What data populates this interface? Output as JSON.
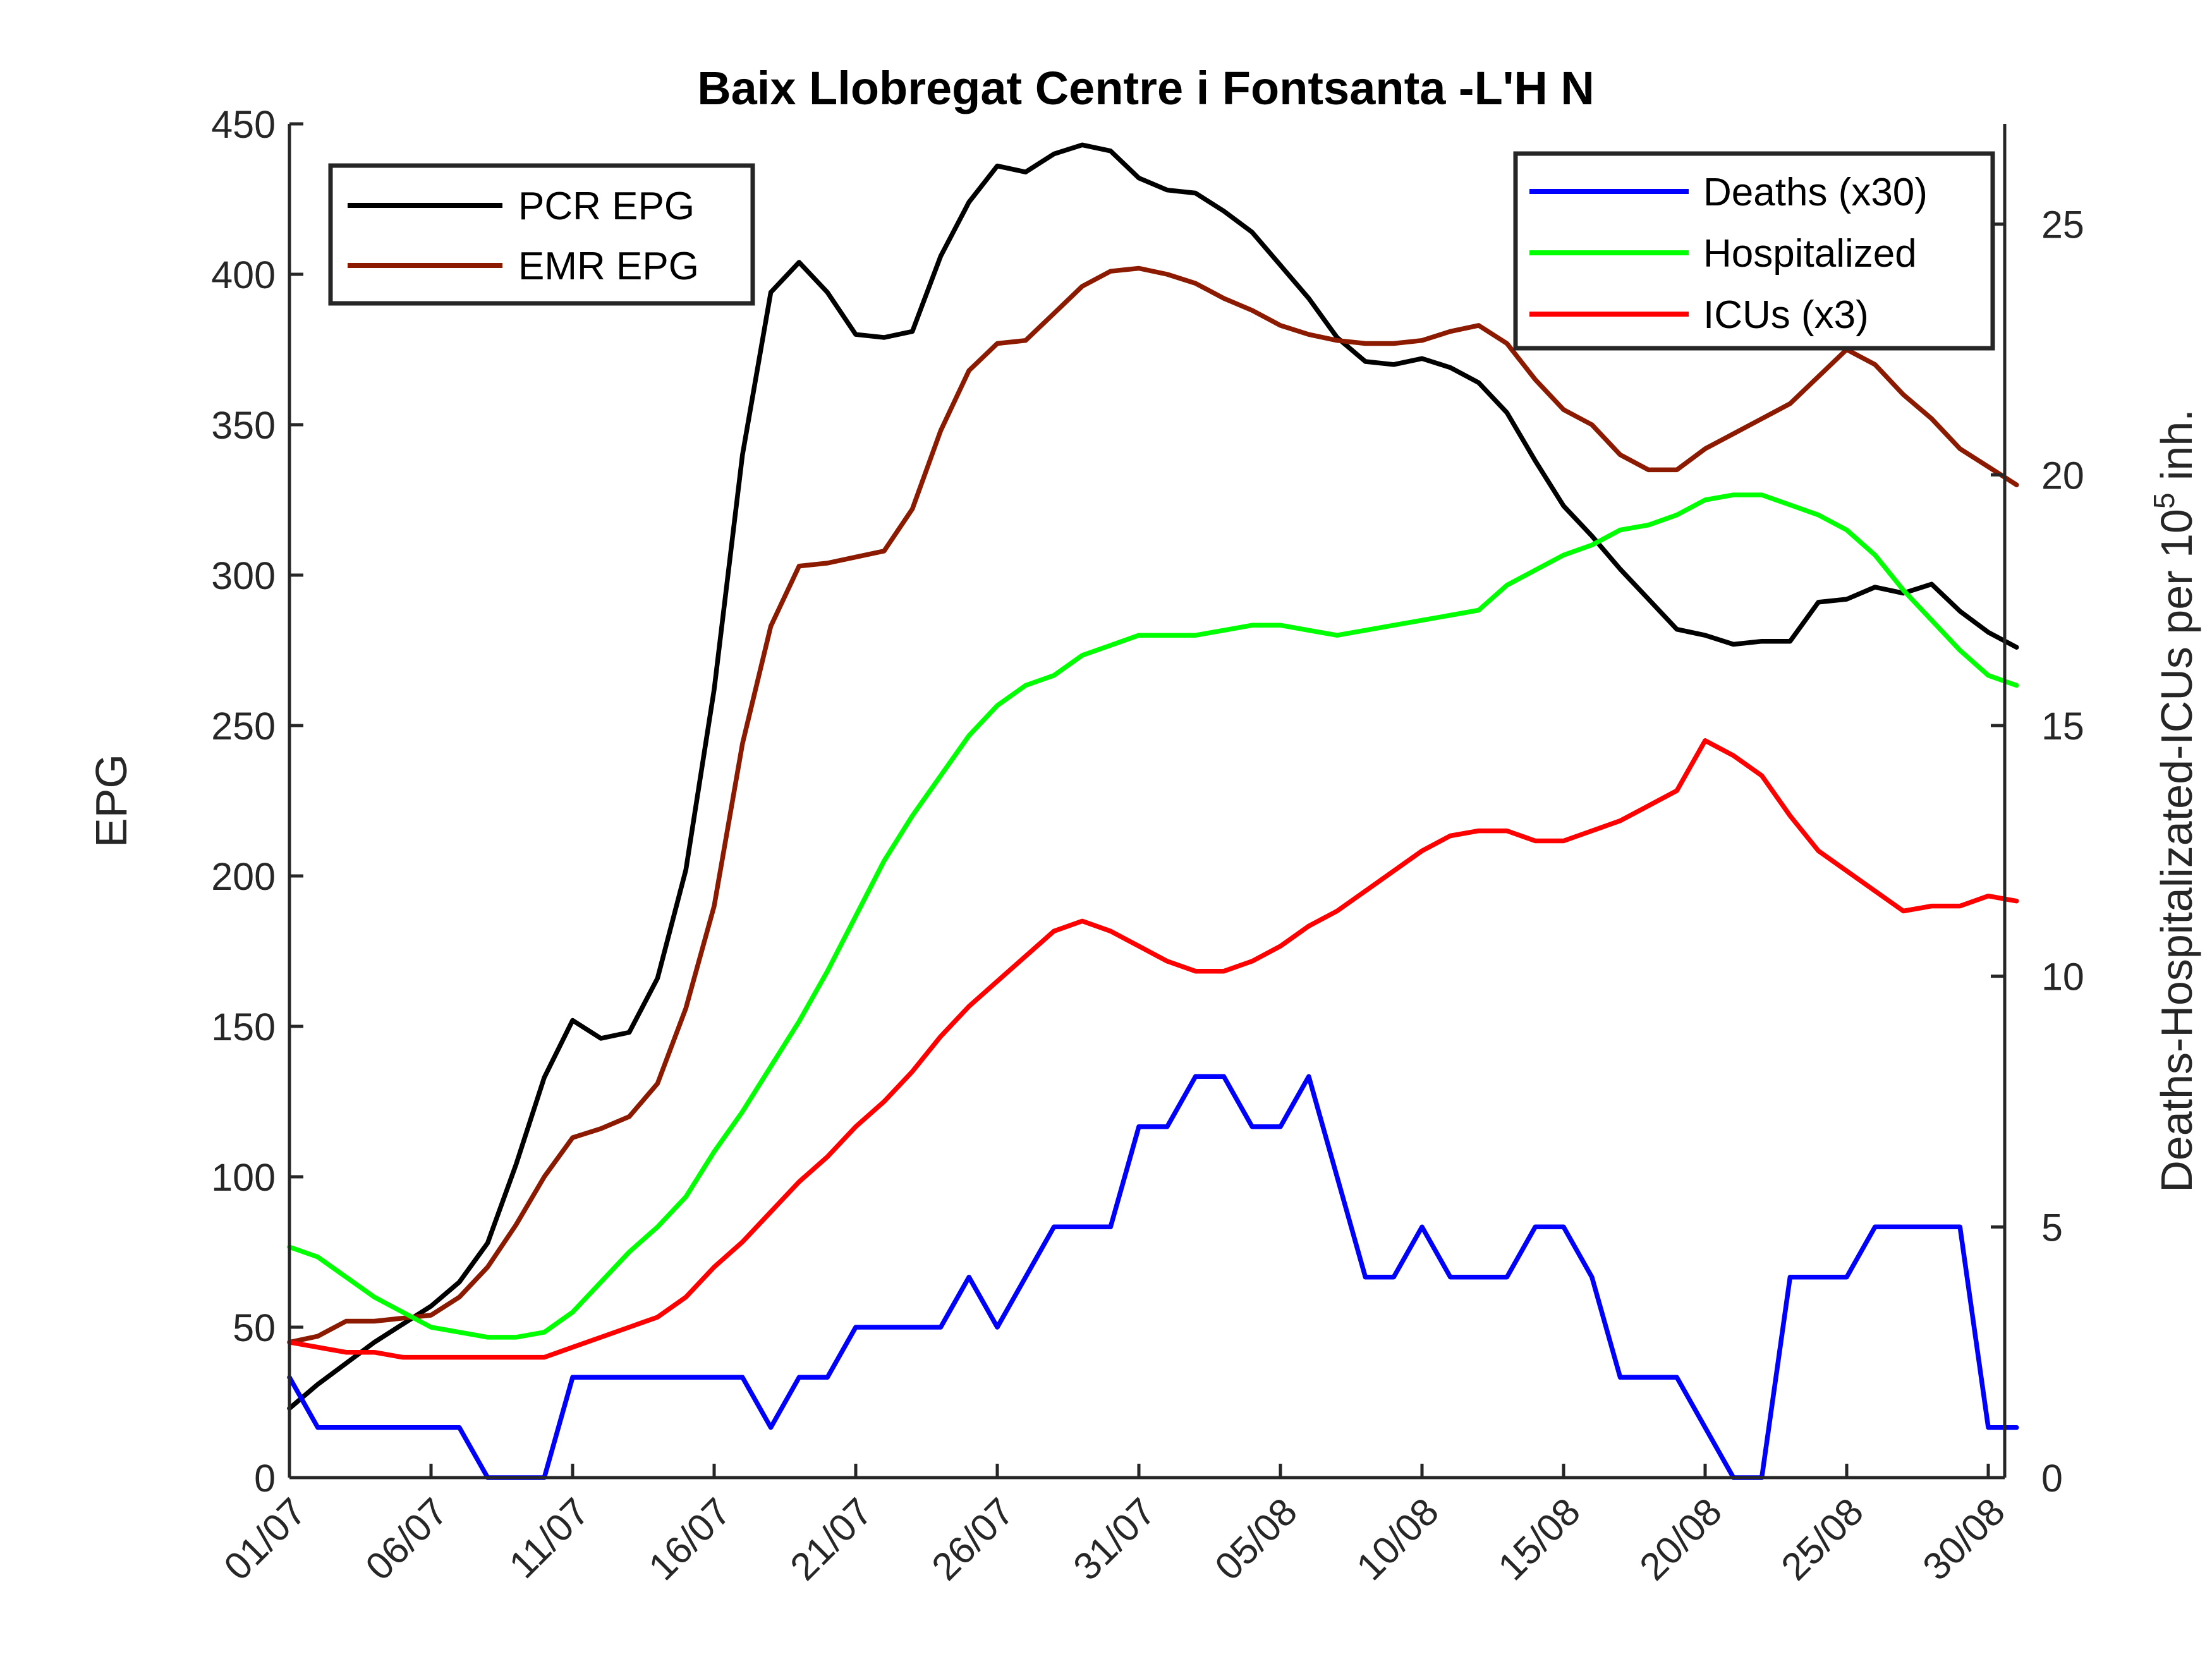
{
  "chart_data": {
    "type": "line",
    "title": "Baix Llobregat Centre i Fontsanta -L'H N",
    "ylabel_left": "EPG",
    "ylabel_right": "Deaths-Hospitalizated-ICUs per 10",
    "ylabel_right_sup": "5",
    "ylabel_right_suffix": " inh.",
    "ylim_left": [
      0,
      450
    ],
    "ylim_right": [
      0,
      27
    ],
    "yticks_left": [
      "0",
      "50",
      "100",
      "150",
      "200",
      "250",
      "300",
      "350",
      "400",
      "450"
    ],
    "yticks_right": [
      "0",
      "5",
      "10",
      "15",
      "20",
      "25"
    ],
    "x_dates": [
      "01/07",
      "02/07",
      "03/07",
      "04/07",
      "05/07",
      "06/07",
      "07/07",
      "08/07",
      "09/07",
      "10/07",
      "11/07",
      "12/07",
      "13/07",
      "14/07",
      "15/07",
      "16/07",
      "17/07",
      "18/07",
      "19/07",
      "20/07",
      "21/07",
      "22/07",
      "23/07",
      "24/07",
      "25/07",
      "26/07",
      "27/07",
      "28/07",
      "29/07",
      "30/07",
      "31/07",
      "01/08",
      "02/08",
      "03/08",
      "04/08",
      "05/08",
      "06/08",
      "07/08",
      "08/08",
      "09/08",
      "10/08",
      "11/08",
      "12/08",
      "13/08",
      "14/08",
      "15/08",
      "16/08",
      "17/08",
      "18/08",
      "19/08",
      "20/08",
      "21/08",
      "22/08",
      "23/08",
      "24/08",
      "25/08",
      "26/08",
      "27/08",
      "28/08",
      "29/08",
      "30/08",
      "31/08"
    ],
    "xticks": [
      "01/07",
      "06/07",
      "11/07",
      "16/07",
      "21/07",
      "26/07",
      "31/07",
      "05/08",
      "10/08",
      "15/08",
      "20/08",
      "25/08",
      "30/08"
    ],
    "series": [
      {
        "name": "PCR EPG",
        "axis": "left",
        "color": "#000000",
        "values": [
          23,
          31,
          38,
          45,
          51,
          57,
          65,
          78,
          104,
          133,
          152,
          146,
          148,
          166,
          202,
          262,
          340,
          394,
          404,
          394,
          380,
          379,
          381,
          406,
          424,
          436,
          434,
          440,
          443,
          441,
          432,
          428,
          427,
          421,
          414,
          403,
          392,
          379,
          371,
          370,
          372,
          369,
          364,
          354,
          338,
          323,
          313,
          302,
          292,
          282,
          280,
          277,
          278,
          278,
          291,
          292,
          296,
          294,
          297,
          288,
          281,
          276
        ]
      },
      {
        "name": "EMR EPG",
        "axis": "left",
        "color": "#8b1a00",
        "values": [
          45,
          47,
          52,
          52,
          53,
          54,
          60,
          70,
          84,
          100,
          113,
          116,
          120,
          131,
          156,
          190,
          244,
          283,
          303,
          304,
          306,
          308,
          322,
          348,
          368,
          377,
          378,
          387,
          396,
          401,
          402,
          400,
          397,
          392,
          388,
          383,
          380,
          378,
          377,
          377,
          378,
          381,
          383,
          377,
          365,
          355,
          350,
          340,
          335,
          335,
          342,
          347,
          352,
          357,
          366,
          375,
          370,
          360,
          352,
          342,
          336,
          330
        ]
      },
      {
        "name": "Deaths (x30)",
        "axis": "right",
        "color": "#0000ff",
        "values": [
          2,
          1,
          1,
          1,
          1,
          1,
          1,
          0,
          0,
          0,
          2,
          2,
          2,
          2,
          2,
          2,
          2,
          1,
          2,
          2,
          3,
          3,
          3,
          3,
          4,
          3,
          4,
          5,
          5,
          5,
          7,
          7,
          8,
          8,
          7,
          7,
          8,
          6,
          4,
          4,
          5,
          4,
          4,
          4,
          5,
          5,
          4,
          2,
          2,
          2,
          1,
          0,
          0,
          4,
          4,
          4,
          5,
          5,
          5,
          5,
          1,
          1
        ]
      },
      {
        "name": "Hospitalized",
        "axis": "right",
        "color": "#00ff00",
        "values": [
          4.6,
          4.4,
          4.0,
          3.6,
          3.3,
          3.0,
          2.9,
          2.8,
          2.8,
          2.9,
          3.3,
          3.9,
          4.5,
          5.0,
          5.6,
          6.5,
          7.3,
          8.2,
          9.1,
          10.1,
          11.2,
          12.3,
          13.2,
          14.0,
          14.8,
          15.4,
          15.8,
          16.0,
          16.4,
          16.6,
          16.8,
          16.8,
          16.8,
          16.9,
          17.0,
          17.0,
          16.9,
          16.8,
          16.9,
          17.0,
          17.1,
          17.2,
          17.3,
          17.8,
          18.1,
          18.4,
          18.6,
          18.9,
          19.0,
          19.2,
          19.5,
          19.6,
          19.6,
          19.4,
          19.2,
          18.9,
          18.4,
          17.7,
          17.1,
          16.5,
          16.0,
          15.8
        ]
      },
      {
        "name": "ICUs (x3)",
        "axis": "right",
        "color": "#ff0000",
        "values": [
          2.7,
          2.6,
          2.5,
          2.5,
          2.4,
          2.4,
          2.4,
          2.4,
          2.4,
          2.4,
          2.6,
          2.8,
          3.0,
          3.2,
          3.6,
          4.2,
          4.7,
          5.3,
          5.9,
          6.4,
          7.0,
          7.5,
          8.1,
          8.8,
          9.4,
          9.9,
          10.4,
          10.9,
          11.1,
          10.9,
          10.6,
          10.3,
          10.1,
          10.1,
          10.3,
          10.6,
          11.0,
          11.3,
          11.7,
          12.1,
          12.5,
          12.8,
          12.9,
          12.9,
          12.7,
          12.7,
          12.9,
          13.1,
          13.4,
          13.7,
          14.7,
          14.4,
          14.0,
          13.2,
          12.5,
          12.1,
          11.7,
          11.3,
          11.4,
          11.4,
          11.6,
          11.5
        ]
      }
    ],
    "legends": [
      {
        "placement": "top-left",
        "entries": [
          "PCR EPG",
          "EMR EPG"
        ]
      },
      {
        "placement": "top-right",
        "entries": [
          "Deaths (x30)",
          "Hospitalized",
          "ICUs (x3)"
        ]
      }
    ],
    "grid": false
  }
}
